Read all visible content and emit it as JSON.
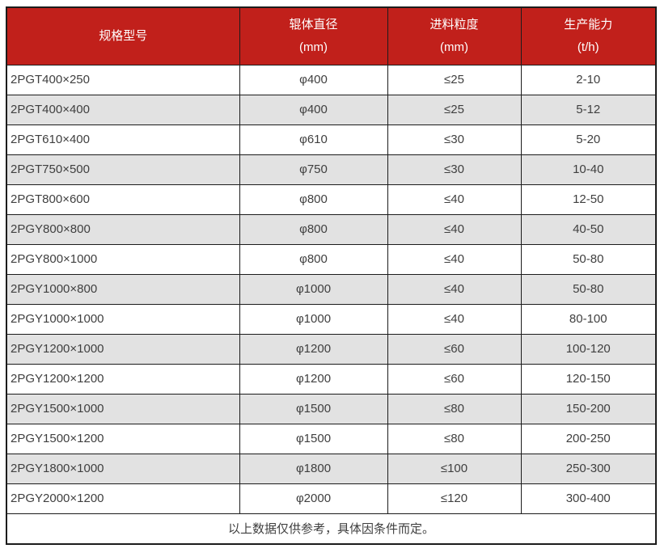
{
  "colors": {
    "header_bg": "#c1201b",
    "header_text": "#ffffff",
    "stripe_bg": "#e2e2e2",
    "border": "#1c1c1c",
    "body_text": "#3f3f3f"
  },
  "table": {
    "columns": [
      {
        "title": "规格型号",
        "unit": ""
      },
      {
        "title": "辊体直径",
        "unit": "(mm)"
      },
      {
        "title": "进料粒度",
        "unit": "(mm)"
      },
      {
        "title": "生产能力",
        "unit": "(t/h)"
      }
    ],
    "rows": [
      [
        "2PGT400×250",
        "φ400",
        "≤25",
        "2-10"
      ],
      [
        "2PGT400×400",
        "φ400",
        "≤25",
        "5-12"
      ],
      [
        "2PGT610×400",
        "φ610",
        "≤30",
        "5-20"
      ],
      [
        "2PGT750×500",
        "φ750",
        "≤30",
        "10-40"
      ],
      [
        "2PGT800×600",
        "φ800",
        "≤40",
        "12-50"
      ],
      [
        "2PGY800×800",
        "φ800",
        "≤40",
        "40-50"
      ],
      [
        "2PGY800×1000",
        "φ800",
        "≤40",
        "50-80"
      ],
      [
        "2PGY1000×800",
        "φ1000",
        "≤40",
        "50-80"
      ],
      [
        "2PGY1000×1000",
        "φ1000",
        "≤40",
        "80-100"
      ],
      [
        "2PGY1200×1000",
        "φ1200",
        "≤60",
        "100-120"
      ],
      [
        "2PGY1200×1200",
        "φ1200",
        "≤60",
        "120-150"
      ],
      [
        "2PGY1500×1000",
        "φ1500",
        "≤80",
        "150-200"
      ],
      [
        "2PGY1500×1200",
        "φ1500",
        "≤80",
        "200-250"
      ],
      [
        "2PGY1800×1000",
        "φ1800",
        "≤100",
        "250-300"
      ],
      [
        "2PGY2000×1200",
        "φ2000",
        "≤120",
        "300-400"
      ]
    ],
    "footnote": "以上数据仅供参考，具体因条件而定。"
  }
}
